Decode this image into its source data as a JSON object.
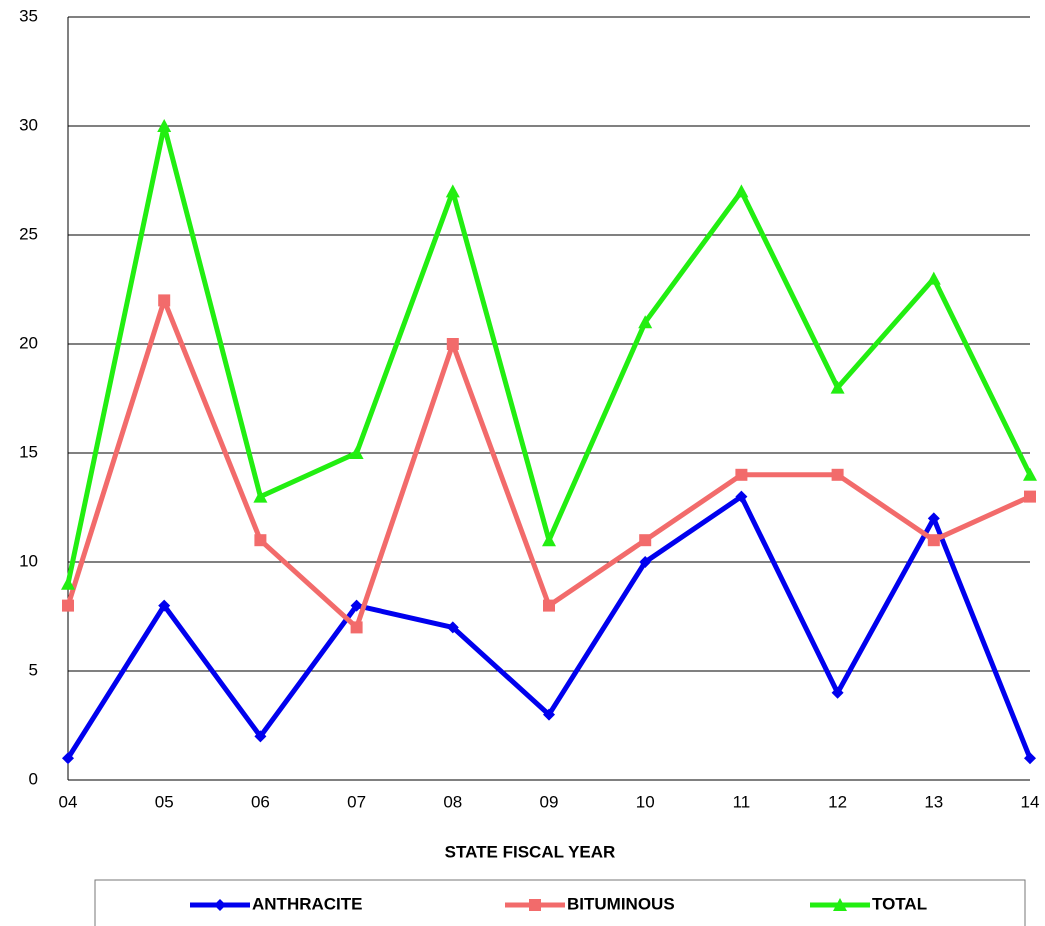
{
  "chart_data": {
    "type": "line",
    "x_label": "STATE FISCAL YEAR",
    "categories": [
      "04",
      "05",
      "06",
      "07",
      "08",
      "09",
      "10",
      "11",
      "12",
      "13",
      "14"
    ],
    "series": [
      {
        "name": "ANTHRACITE",
        "color": "#0000ee",
        "marker": "diamond",
        "values": [
          1,
          8,
          2,
          8,
          7,
          3,
          10,
          13,
          4,
          12,
          1
        ]
      },
      {
        "name": "BITUMINOUS",
        "color": "#f26b6b",
        "marker": "square",
        "values": [
          8,
          22,
          11,
          7,
          20,
          8,
          11,
          14,
          14,
          11,
          13
        ]
      },
      {
        "name": "TOTAL",
        "color": "#22ee11",
        "marker": "triangle",
        "values": [
          9,
          30,
          13,
          15,
          27,
          11,
          21,
          27,
          18,
          23,
          14
        ]
      }
    ],
    "ylim": [
      0,
      35
    ],
    "yticks": [
      0,
      5,
      10,
      15,
      20,
      25,
      30,
      35
    ],
    "grid": true,
    "legend": "bottom"
  }
}
